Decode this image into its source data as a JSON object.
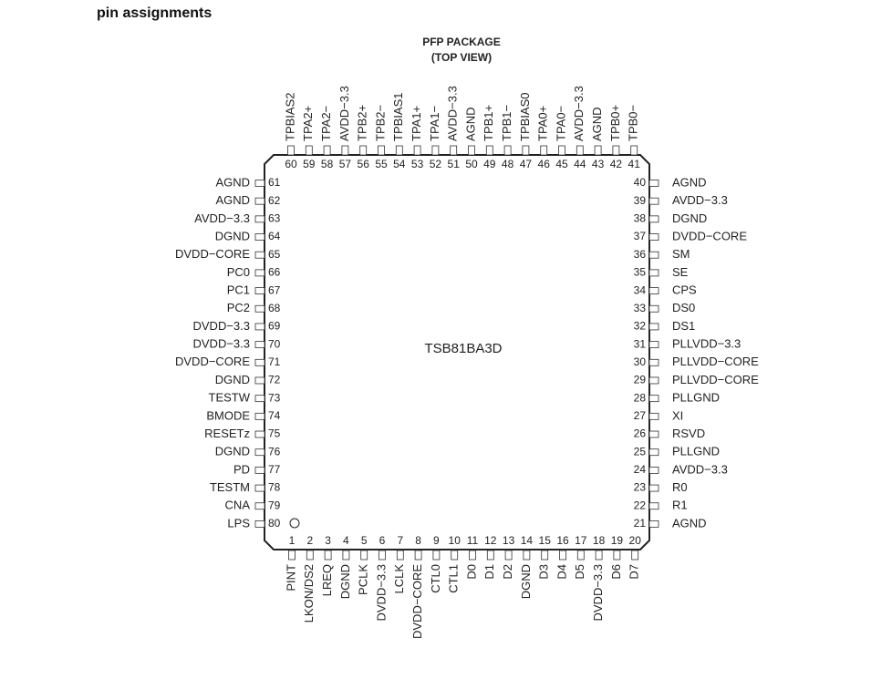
{
  "header": {
    "title": "pin assignments"
  },
  "package": {
    "title": "PFP PACKAGE",
    "view": "(TOP VIEW)"
  },
  "chip": {
    "label": "TSB81BA3D"
  },
  "pins": {
    "top": [
      {
        "number": 60,
        "name": "TPBIAS2"
      },
      {
        "number": 59,
        "name": "TPA2+"
      },
      {
        "number": 58,
        "name": "TPA2−"
      },
      {
        "number": 57,
        "name": "AVDD−3.3"
      },
      {
        "number": 56,
        "name": "TPB2+"
      },
      {
        "number": 55,
        "name": "TPB2−"
      },
      {
        "number": 54,
        "name": "TPBIAS1"
      },
      {
        "number": 53,
        "name": "TPA1+"
      },
      {
        "number": 52,
        "name": "TPA1−"
      },
      {
        "number": 51,
        "name": "AVDD−3.3"
      },
      {
        "number": 50,
        "name": "AGND"
      },
      {
        "number": 49,
        "name": "TPB1+"
      },
      {
        "number": 48,
        "name": "TPB1−"
      },
      {
        "number": 47,
        "name": "TPBIAS0"
      },
      {
        "number": 46,
        "name": "TPA0+"
      },
      {
        "number": 45,
        "name": "TPA0−"
      },
      {
        "number": 44,
        "name": "AVDD−3.3"
      },
      {
        "number": 43,
        "name": "AGND"
      },
      {
        "number": 42,
        "name": "TPB0+"
      },
      {
        "number": 41,
        "name": "TPB0−"
      }
    ],
    "left": [
      {
        "number": 61,
        "name": "AGND"
      },
      {
        "number": 62,
        "name": "AGND"
      },
      {
        "number": 63,
        "name": "AVDD−3.3"
      },
      {
        "number": 64,
        "name": "DGND"
      },
      {
        "number": 65,
        "name": "DVDD−CORE"
      },
      {
        "number": 66,
        "name": "PC0"
      },
      {
        "number": 67,
        "name": "PC1"
      },
      {
        "number": 68,
        "name": "PC2"
      },
      {
        "number": 69,
        "name": "DVDD−3.3"
      },
      {
        "number": 70,
        "name": "DVDD−3.3"
      },
      {
        "number": 71,
        "name": "DVDD−CORE"
      },
      {
        "number": 72,
        "name": "DGND"
      },
      {
        "number": 73,
        "name": "TESTW"
      },
      {
        "number": 74,
        "name": "BMODE"
      },
      {
        "number": 75,
        "name": "RESETz"
      },
      {
        "number": 76,
        "name": "DGND"
      },
      {
        "number": 77,
        "name": "PD"
      },
      {
        "number": 78,
        "name": "TESTM"
      },
      {
        "number": 79,
        "name": "CNA"
      },
      {
        "number": 80,
        "name": "LPS"
      }
    ],
    "right": [
      {
        "number": 40,
        "name": "AGND"
      },
      {
        "number": 39,
        "name": "AVDD−3.3"
      },
      {
        "number": 38,
        "name": "DGND"
      },
      {
        "number": 37,
        "name": "DVDD−CORE"
      },
      {
        "number": 36,
        "name": "SM"
      },
      {
        "number": 35,
        "name": "SE"
      },
      {
        "number": 34,
        "name": "CPS"
      },
      {
        "number": 33,
        "name": "DS0"
      },
      {
        "number": 32,
        "name": "DS1"
      },
      {
        "number": 31,
        "name": "PLLVDD−3.3"
      },
      {
        "number": 30,
        "name": "PLLVDD−CORE"
      },
      {
        "number": 29,
        "name": "PLLVDD−CORE"
      },
      {
        "number": 28,
        "name": "PLLGND"
      },
      {
        "number": 27,
        "name": "XI"
      },
      {
        "number": 26,
        "name": "RSVD"
      },
      {
        "number": 25,
        "name": "PLLGND"
      },
      {
        "number": 24,
        "name": "AVDD−3.3"
      },
      {
        "number": 23,
        "name": "R0"
      },
      {
        "number": 22,
        "name": "R1"
      },
      {
        "number": 21,
        "name": "AGND"
      }
    ],
    "bottom": [
      {
        "number": 1,
        "name": "PINT"
      },
      {
        "number": 2,
        "name": "LKON/DS2"
      },
      {
        "number": 3,
        "name": "LREQ"
      },
      {
        "number": 4,
        "name": "DGND"
      },
      {
        "number": 5,
        "name": "PCLK"
      },
      {
        "number": 6,
        "name": "DVDD−3.3"
      },
      {
        "number": 7,
        "name": "LCLK"
      },
      {
        "number": 8,
        "name": "DVDD−CORE"
      },
      {
        "number": 9,
        "name": "CTL0"
      },
      {
        "number": 10,
        "name": "CTL1"
      },
      {
        "number": 11,
        "name": "D0"
      },
      {
        "number": 12,
        "name": "D1"
      },
      {
        "number": 13,
        "name": "D2"
      },
      {
        "number": 14,
        "name": "DGND"
      },
      {
        "number": 15,
        "name": "D3"
      },
      {
        "number": 16,
        "name": "D4"
      },
      {
        "number": 17,
        "name": "D5"
      },
      {
        "number": 18,
        "name": "DVDD−3.3"
      },
      {
        "number": 19,
        "name": "D6"
      },
      {
        "number": 20,
        "name": "D7"
      }
    ]
  }
}
